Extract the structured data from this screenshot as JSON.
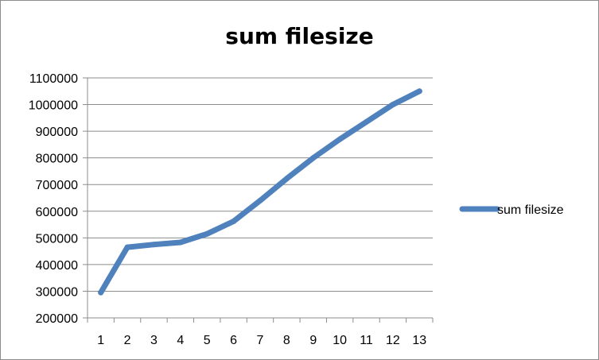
{
  "chart_data": {
    "type": "line",
    "title": "sum filesize",
    "xlabel": "",
    "ylabel": "",
    "categories": [
      "1",
      "2",
      "3",
      "4",
      "5",
      "6",
      "7",
      "8",
      "9",
      "10",
      "11",
      "12",
      "13"
    ],
    "series": [
      {
        "name": "sum filesize",
        "color": "#4f81bd",
        "values": [
          295000,
          465000,
          475000,
          483000,
          515000,
          562000,
          640000,
          722000,
          800000,
          870000,
          935000,
          1000000,
          1050000
        ]
      }
    ],
    "ylim": [
      200000,
      1100000
    ],
    "yticks": [
      "200000",
      "300000",
      "400000",
      "500000",
      "600000",
      "700000",
      "800000",
      "900000",
      "1000000",
      "1100000"
    ],
    "grid": true,
    "legend": "right"
  }
}
